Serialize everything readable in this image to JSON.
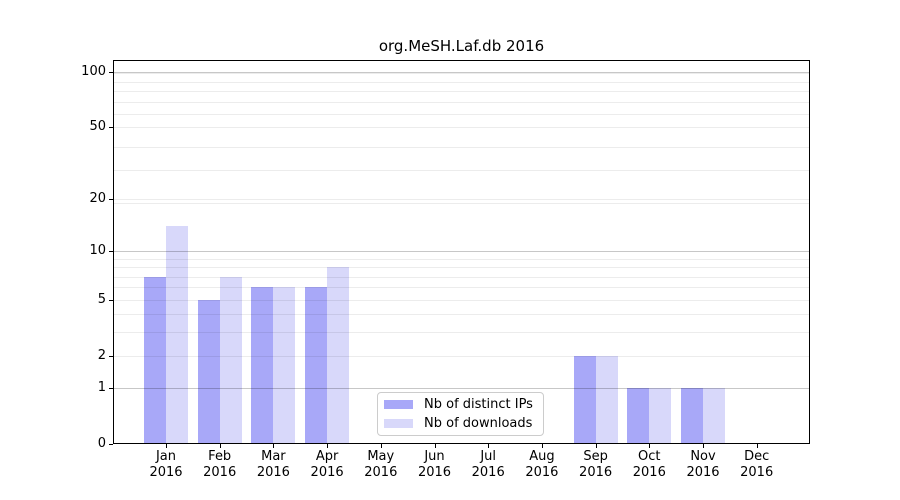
{
  "chart_data": {
    "type": "bar",
    "title": "org.MeSH.Laf.db 2016",
    "year_label": "2016",
    "categories": [
      "Jan",
      "Feb",
      "Mar",
      "Apr",
      "May",
      "Jun",
      "Jul",
      "Aug",
      "Sep",
      "Oct",
      "Nov",
      "Dec"
    ],
    "series": [
      {
        "name": "Nb of distinct IPs",
        "color": "#a8a8f8",
        "values": [
          7,
          5,
          6,
          6,
          0,
          0,
          0,
          0,
          2,
          1,
          1,
          0
        ]
      },
      {
        "name": "Nb of downloads",
        "color": "#d8d8fa",
        "values": [
          14,
          7,
          6,
          8,
          0,
          0,
          0,
          0,
          2,
          1,
          1,
          0
        ]
      }
    ],
    "y_scale": "log10(1+v)",
    "y_axis_ticks": [
      0,
      1,
      2,
      5,
      10,
      20,
      50,
      100
    ],
    "y_minor_gridlines": [
      3,
      4,
      6,
      7,
      8,
      9,
      19,
      29,
      39,
      59,
      69,
      79,
      89,
      99
    ],
    "y_dark_gridlines": [
      1,
      10,
      100
    ],
    "ylim_log_decades": 2.071,
    "grid": "horizontal only",
    "legend_position": "bottom-center-left inside plot",
    "colors": {
      "background": "#ffffff",
      "grid_minor": "#ececec",
      "grid_major": "#c8c8c8",
      "axis": "#000000"
    }
  }
}
